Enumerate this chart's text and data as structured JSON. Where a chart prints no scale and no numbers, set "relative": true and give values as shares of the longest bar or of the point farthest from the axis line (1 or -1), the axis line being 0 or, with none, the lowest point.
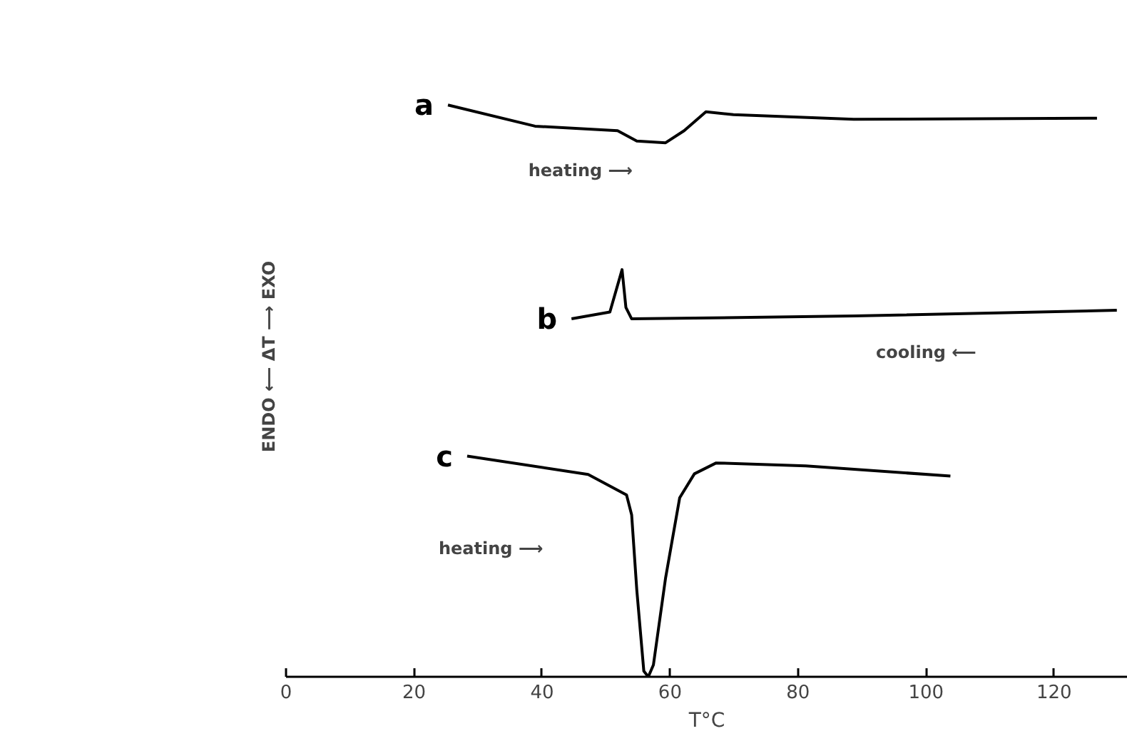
{
  "chart_data": {
    "type": "line",
    "relative": true,
    "xlabel": "T°C",
    "ylabel": "ENDO ⟵ ΔT ⟶ EXO",
    "xlim": [
      0,
      131.5
    ],
    "xticks": [
      0,
      20,
      40,
      60,
      80,
      100,
      120
    ],
    "grid": false,
    "marker": "none",
    "line_style": "solid",
    "series": [
      {
        "name": "a",
        "color": "#000000",
        "x": [
          25.3,
          38.9,
          51.8,
          54.8,
          59.3,
          62.2,
          65.6,
          69.9,
          88.7,
          126.7
        ],
        "values": [
          1.0,
          0.963,
          0.955,
          0.937,
          0.934,
          0.955,
          0.988,
          0.983,
          0.975,
          0.977
        ]
      },
      {
        "name": "b",
        "color": "#000000",
        "x": [
          44.6,
          50.6,
          52.5,
          53.1,
          54.0,
          88.7,
          129.8
        ],
        "values": [
          0.626,
          0.638,
          0.712,
          0.646,
          0.626,
          0.631,
          0.641
        ]
      },
      {
        "name": "c",
        "color": "#000000",
        "x": [
          28.3,
          47.2,
          53.2,
          54.0,
          54.8,
          55.9,
          56.6,
          57.4,
          59.3,
          61.5,
          63.8,
          67.2,
          81.2,
          103.8
        ],
        "values": [
          0.386,
          0.354,
          0.318,
          0.283,
          0.152,
          0.01,
          0.0,
          0.021,
          0.173,
          0.313,
          0.355,
          0.374,
          0.369,
          0.351
        ]
      }
    ],
    "annotations": [
      "heating ⟶",
      "cooling ⟵",
      "heating ⟶"
    ]
  }
}
